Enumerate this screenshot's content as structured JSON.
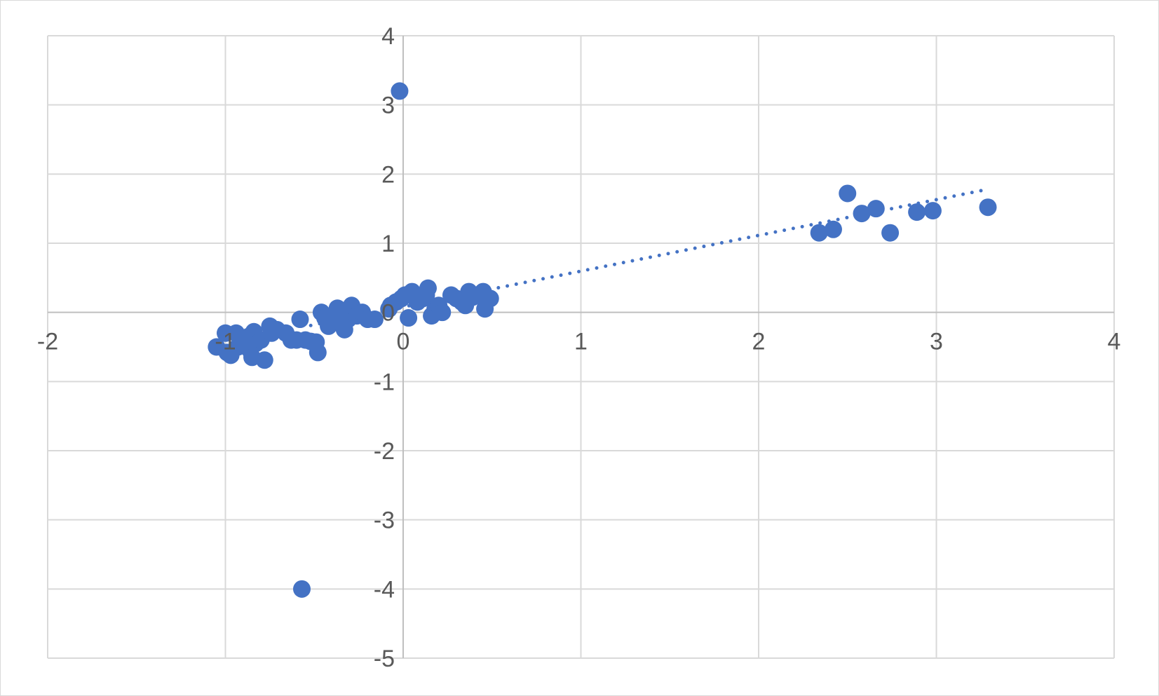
{
  "chart_data": {
    "type": "scatter",
    "title": "",
    "xlabel": "",
    "ylabel": "",
    "xlim": [
      -2,
      4
    ],
    "ylim": [
      -5,
      4
    ],
    "grid": true,
    "legend": "none",
    "x_ticks": [
      "-2",
      "-1",
      "0",
      "1",
      "2",
      "3",
      "4"
    ],
    "y_ticks": [
      "4",
      "3",
      "2",
      "1",
      "0",
      "-1",
      "-2",
      "-3",
      "-4",
      "-5"
    ],
    "colors": {
      "marker": "#4472c4",
      "trendline": "#4472c4",
      "grid": "#d9d9d9"
    },
    "trendline": {
      "style": "dotted",
      "x_start": -0.52,
      "x_end": 3.29,
      "y_start": -0.19,
      "y_end": 1.78
    },
    "series": [
      {
        "points": [
          [
            -0.02,
            3.2
          ],
          [
            -0.57,
            -4.0
          ],
          [
            -1.05,
            -0.5
          ],
          [
            -1.0,
            -0.3
          ],
          [
            -0.99,
            -0.58
          ],
          [
            -0.97,
            -0.62
          ],
          [
            -0.94,
            -0.3
          ],
          [
            -0.93,
            -0.5
          ],
          [
            -0.9,
            -0.45
          ],
          [
            -0.87,
            -0.35
          ],
          [
            -0.86,
            -0.55
          ],
          [
            -0.85,
            -0.65
          ],
          [
            -0.84,
            -0.28
          ],
          [
            -0.83,
            -0.45
          ],
          [
            -0.8,
            -0.4
          ],
          [
            -0.78,
            -0.69
          ],
          [
            -0.75,
            -0.2
          ],
          [
            -0.74,
            -0.3
          ],
          [
            -0.71,
            -0.25
          ],
          [
            -0.66,
            -0.3
          ],
          [
            -0.63,
            -0.4
          ],
          [
            -0.6,
            -0.4
          ],
          [
            -0.58,
            -0.1
          ],
          [
            -0.55,
            -0.4
          ],
          [
            -0.52,
            -0.42
          ],
          [
            -0.49,
            -0.43
          ],
          [
            -0.48,
            -0.58
          ],
          [
            -0.46,
            0.0
          ],
          [
            -0.44,
            -0.08
          ],
          [
            -0.42,
            -0.2
          ],
          [
            -0.4,
            -0.1
          ],
          [
            -0.37,
            0.06
          ],
          [
            -0.35,
            -0.05
          ],
          [
            -0.33,
            -0.25
          ],
          [
            -0.31,
            -0.1
          ],
          [
            -0.29,
            0.1
          ],
          [
            -0.26,
            -0.05
          ],
          [
            -0.23,
            0.0
          ],
          [
            -0.2,
            -0.1
          ],
          [
            -0.16,
            -0.1
          ],
          [
            -0.08,
            0.05
          ],
          [
            -0.07,
            0.1
          ],
          [
            -0.04,
            0.15
          ],
          [
            -0.01,
            0.2
          ],
          [
            0.01,
            0.25
          ],
          [
            0.03,
            -0.08
          ],
          [
            0.05,
            0.3
          ],
          [
            0.08,
            0.15
          ],
          [
            0.11,
            0.2
          ],
          [
            0.13,
            0.25
          ],
          [
            0.14,
            0.35
          ],
          [
            0.16,
            -0.05
          ],
          [
            0.18,
            0.05
          ],
          [
            0.2,
            0.1
          ],
          [
            0.22,
            0.0
          ],
          [
            0.27,
            0.25
          ],
          [
            0.3,
            0.2
          ],
          [
            0.33,
            0.15
          ],
          [
            0.35,
            0.1
          ],
          [
            0.37,
            0.3
          ],
          [
            0.39,
            0.22
          ],
          [
            0.42,
            0.25
          ],
          [
            0.45,
            0.3
          ],
          [
            0.46,
            0.05
          ],
          [
            0.49,
            0.2
          ],
          [
            2.34,
            1.15
          ],
          [
            2.42,
            1.2
          ],
          [
            2.5,
            1.72
          ],
          [
            2.58,
            1.43
          ],
          [
            2.66,
            1.5
          ],
          [
            2.74,
            1.15
          ],
          [
            2.89,
            1.45
          ],
          [
            2.98,
            1.47
          ],
          [
            3.29,
            1.52
          ]
        ]
      }
    ]
  }
}
